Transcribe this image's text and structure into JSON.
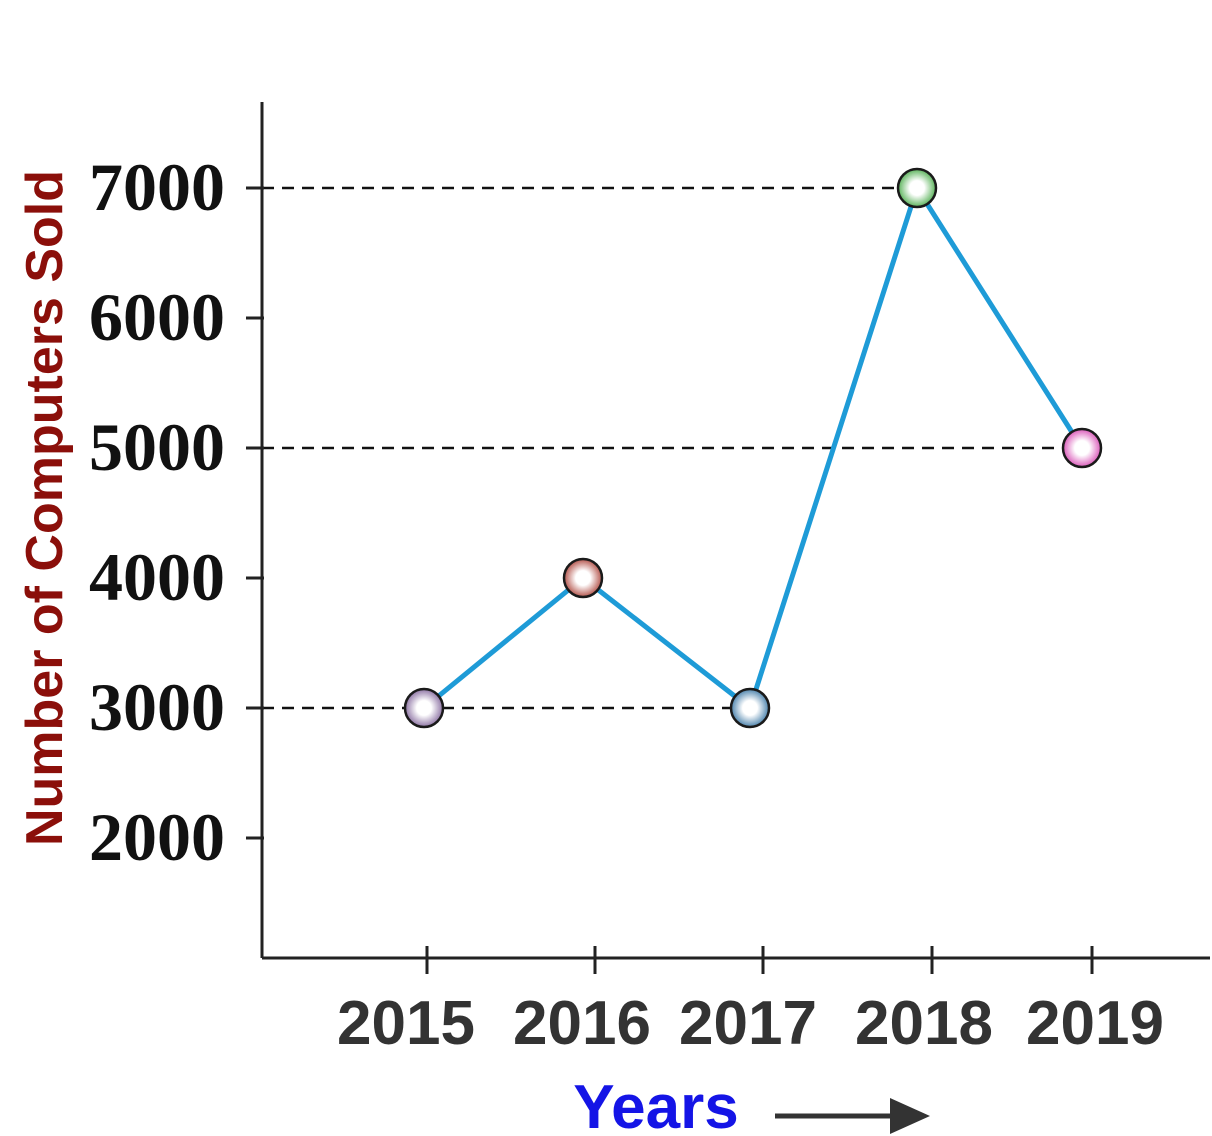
{
  "chart_data": {
    "type": "line",
    "x": [
      "2015",
      "2016",
      "2017",
      "2018",
      "2019"
    ],
    "series": [
      {
        "values": [
          3000,
          4000,
          3000,
          7000,
          5000
        ]
      }
    ],
    "yticks": [
      "2000",
      "3000",
      "4000",
      "5000",
      "6000",
      "7000"
    ],
    "ylim": [
      1000,
      7600
    ],
    "xlabel": "Years",
    "ylabel": "Number of Computers Sold",
    "reference_lines": [
      3000,
      5000,
      7000
    ],
    "grid": false,
    "legend": "none"
  },
  "colors": {
    "line": "#1e9bd7",
    "axis": "#222222",
    "ylabel": "#8b0f0a",
    "xlabel": "#1414e6",
    "arrow": "#333333",
    "markers": [
      "#7b5d95",
      "#a8392f",
      "#2f6f9f",
      "#3fa63f",
      "#d43fae"
    ]
  },
  "icons": {
    "xlabel_arrow": "right-arrow-icon"
  }
}
